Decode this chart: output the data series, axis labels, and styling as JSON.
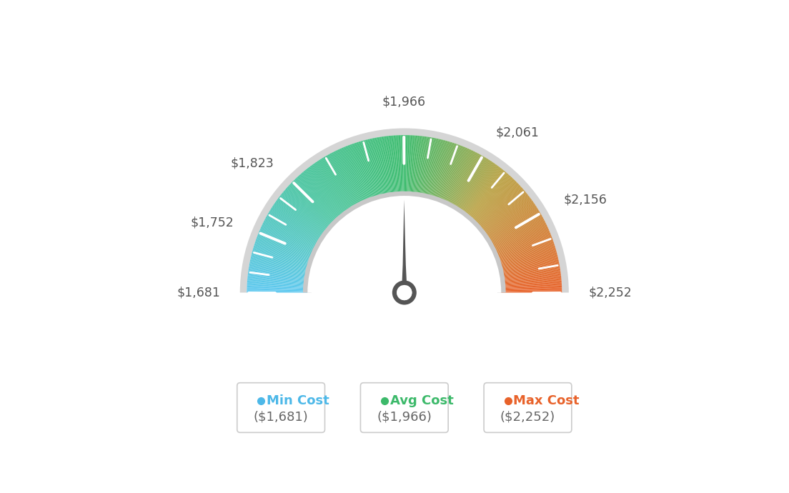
{
  "min_val": 1681,
  "max_val": 2252,
  "avg_val": 1966,
  "tick_labels": [
    "$1,681",
    "$1,752",
    "$1,823",
    "$1,966",
    "$2,061",
    "$2,156",
    "$2,252"
  ],
  "tick_values": [
    1681,
    1752,
    1823,
    1966,
    2061,
    2156,
    2252
  ],
  "legend_items": [
    {
      "label": "Min Cost",
      "value": "($1,681)",
      "color": "#4db8e8"
    },
    {
      "label": "Avg Cost",
      "value": "($1,966)",
      "color": "#3cb96a"
    },
    {
      "label": "Max Cost",
      "value": "($2,252)",
      "color": "#e8622a"
    }
  ],
  "background_color": "#ffffff",
  "needle_color": "#555555",
  "gauge_color_stops": [
    [
      0.0,
      "#5dc8f0"
    ],
    [
      0.25,
      "#47c4a0"
    ],
    [
      0.5,
      "#3dbc6e"
    ],
    [
      0.72,
      "#b8a040"
    ],
    [
      1.0,
      "#e8622a"
    ]
  ]
}
